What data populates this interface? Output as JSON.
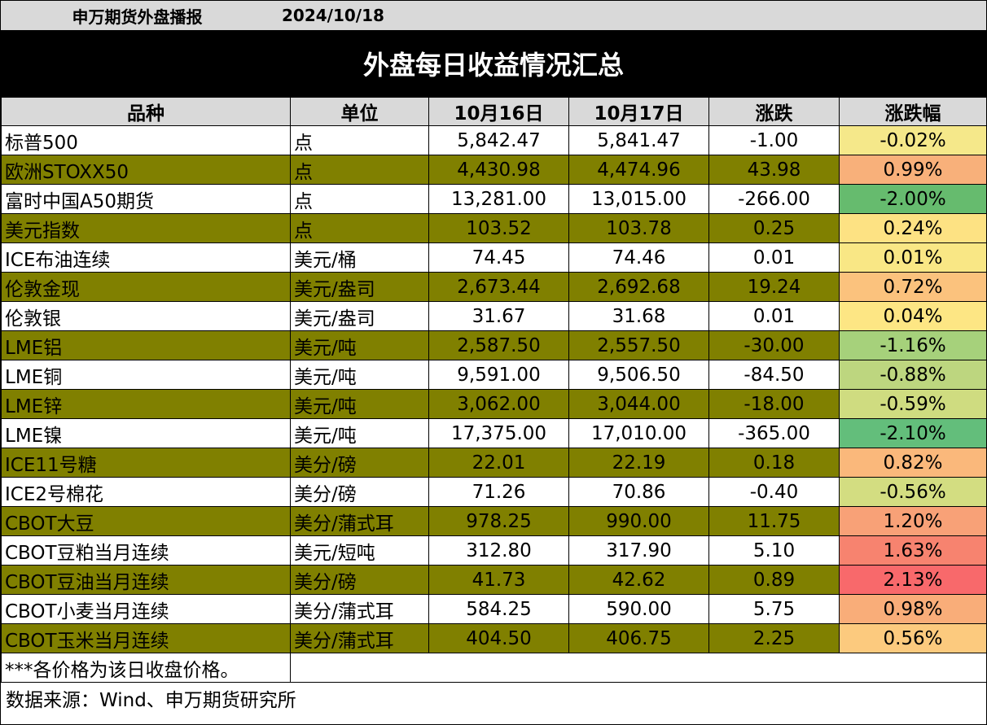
{
  "header": {
    "org": "申万期货外盘播报",
    "date": "2024/10/18"
  },
  "title": "外盘每日收益情况汇总",
  "table": {
    "columns": [
      "品种",
      "单位",
      "10月16日",
      "10月17日",
      "涨跌",
      "涨跌幅"
    ],
    "rows": [
      {
        "name": "标普500",
        "unit": "点",
        "d1": "5,842.47",
        "d2": "5,841.47",
        "chg": "-1.00",
        "pct": "-0.02%",
        "color": "#f5e88a"
      },
      {
        "name": "欧洲STOXX50",
        "unit": "点",
        "d1": "4,430.98",
        "d2": "4,474.96",
        "chg": "43.98",
        "pct": "0.99%",
        "color": "#f8b07a"
      },
      {
        "name": "富时中国A50期货",
        "unit": "点",
        "d1": "13,281.00",
        "d2": "13,015.00",
        "chg": "-266.00",
        "pct": "-2.00%",
        "color": "#66bb6e"
      },
      {
        "name": "美元指数",
        "unit": "点",
        "d1": "103.52",
        "d2": "103.78",
        "chg": "0.25",
        "pct": "0.24%",
        "color": "#fde283"
      },
      {
        "name": "ICE布油连续",
        "unit": "美元/桶",
        "d1": "74.45",
        "d2": "74.46",
        "chg": "0.01",
        "pct": "0.01%",
        "color": "#f9e785"
      },
      {
        "name": "伦敦金现",
        "unit": "美元/盎司",
        "d1": "2,673.44",
        "d2": "2,692.68",
        "chg": "19.24",
        "pct": "0.72%",
        "color": "#fbc27d"
      },
      {
        "name": "伦敦银",
        "unit": "美元/盎司",
        "d1": "31.67",
        "d2": "31.68",
        "chg": "0.01",
        "pct": "0.04%",
        "color": "#fde684"
      },
      {
        "name": "LME铝",
        "unit": "美元/吨",
        "d1": "2,587.50",
        "d2": "2,557.50",
        "chg": "-30.00",
        "pct": "-1.16%",
        "color": "#a6d17b"
      },
      {
        "name": "LME铜",
        "unit": "美元/吨",
        "d1": "9,591.00",
        "d2": "9,506.50",
        "chg": "-84.50",
        "pct": "-0.88%",
        "color": "#bdd67f"
      },
      {
        "name": "LME锌",
        "unit": "美元/吨",
        "d1": "3,062.00",
        "d2": "3,044.00",
        "chg": "-18.00",
        "pct": "-0.59%",
        "color": "#cfdc80"
      },
      {
        "name": "LME镍",
        "unit": "美元/吨",
        "d1": "17,375.00",
        "d2": "17,010.00",
        "chg": "-365.00",
        "pct": "-2.10%",
        "color": "#63be7b"
      },
      {
        "name": "ICE11号糖",
        "unit": "美分/磅",
        "d1": "22.01",
        "d2": "22.19",
        "chg": "0.18",
        "pct": "0.82%",
        "color": "#fab87b"
      },
      {
        "name": "ICE2号棉花",
        "unit": "美分/磅",
        "d1": "71.26",
        "d2": "70.86",
        "chg": "-0.40",
        "pct": "-0.56%",
        "color": "#d3dd81"
      },
      {
        "name": "CBOT大豆",
        "unit": "美分/蒲式耳",
        "d1": "978.25",
        "d2": "990.00",
        "chg": "11.75",
        "pct": "1.20%",
        "color": "#f8a177"
      },
      {
        "name": "CBOT豆粕当月连续",
        "unit": "美元/短吨",
        "d1": "312.80",
        "d2": "317.90",
        "chg": "5.10",
        "pct": "1.63%",
        "color": "#f7836f"
      },
      {
        "name": "CBOT豆油当月连续",
        "unit": "美分/磅",
        "d1": "41.73",
        "d2": "42.62",
        "chg": "0.89",
        "pct": "2.13%",
        "color": "#f8696b"
      },
      {
        "name": "CBOT小麦当月连续",
        "unit": "美分/蒲式耳",
        "d1": "584.25",
        "d2": "590.00",
        "chg": "5.75",
        "pct": "0.98%",
        "color": "#f9ad79"
      },
      {
        "name": "CBOT玉米当月连续",
        "unit": "美分/蒲式耳",
        "d1": "404.50",
        "d2": "406.75",
        "chg": "2.25",
        "pct": "0.56%",
        "color": "#fcca7e"
      }
    ],
    "note": "***各价格为该日收盘价格。"
  },
  "source": "数据来源：Wind、申万期货研究所",
  "colors": {
    "header_bg": "#d9d9d9",
    "title_bg": "#000000",
    "alt_row_bg": "#808000"
  }
}
